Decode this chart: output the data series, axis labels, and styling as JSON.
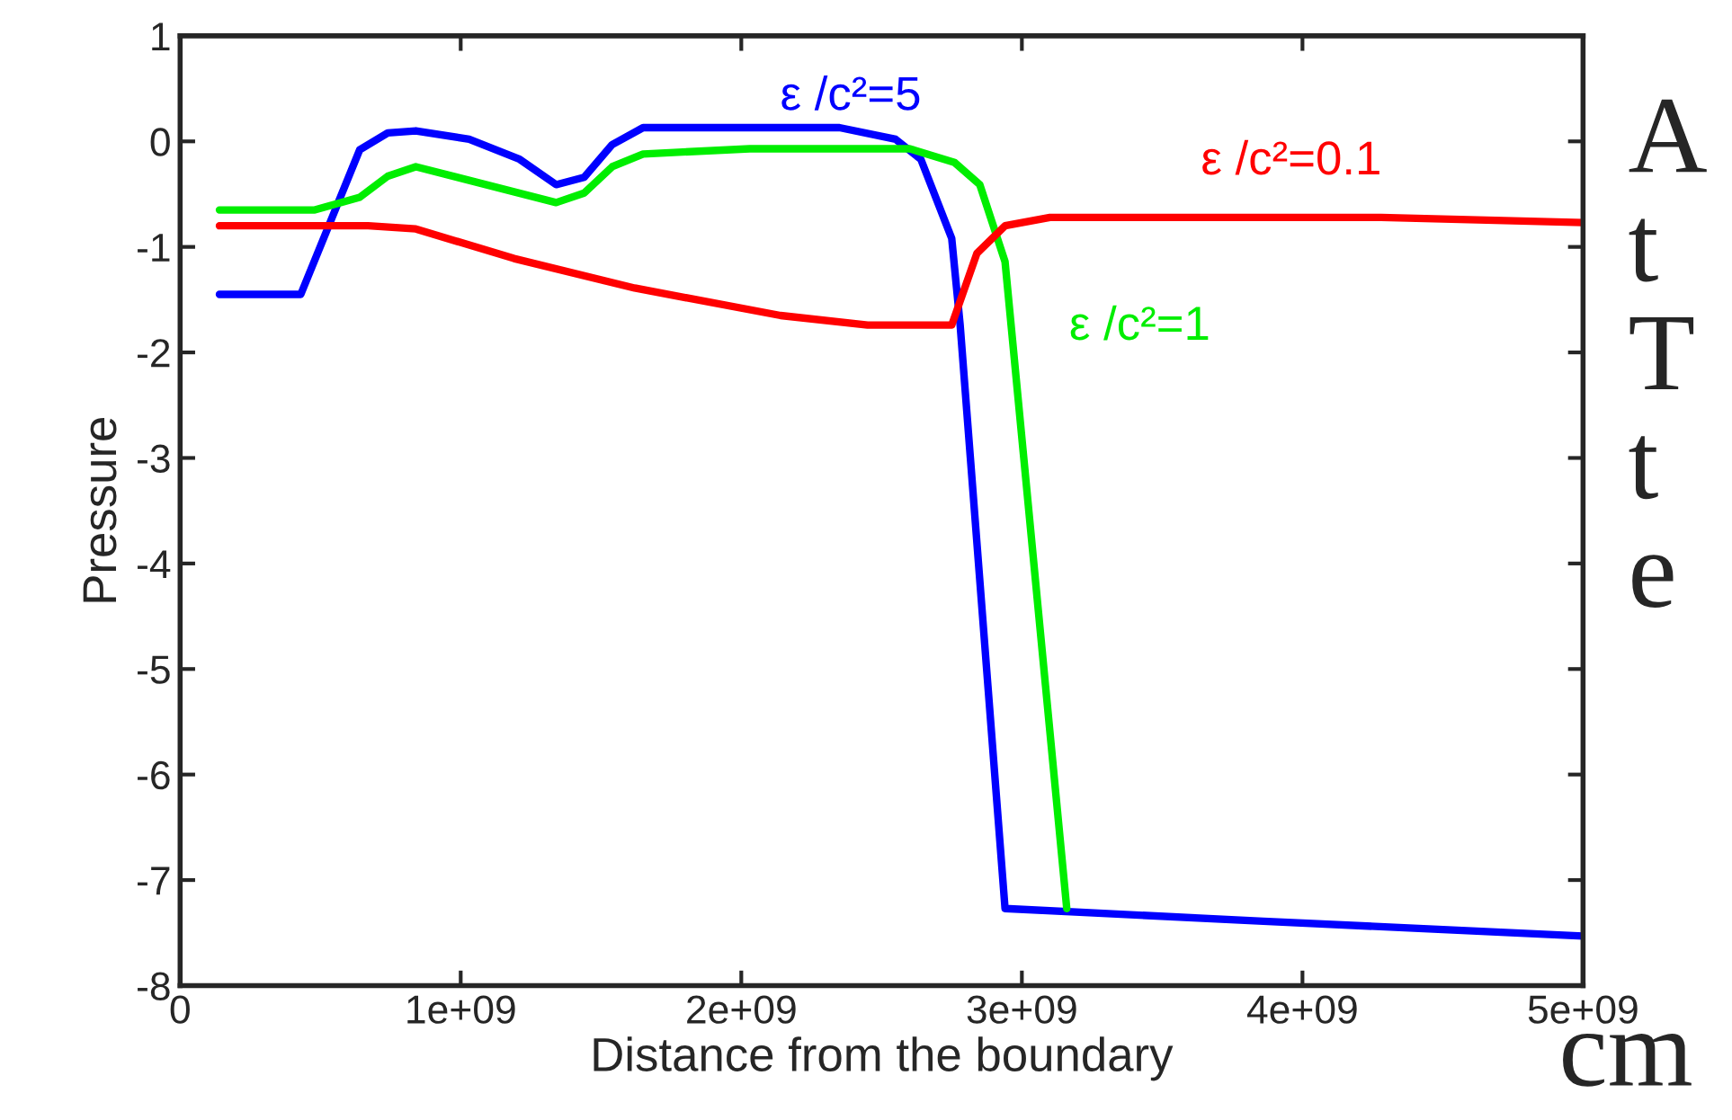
{
  "chart_data": {
    "type": "line",
    "xlabel": "Distance from the boundary",
    "ylabel": "Pressure",
    "xlim": [
      0,
      5000000000
    ],
    "ylim": [
      -8,
      1
    ],
    "xticks": [
      0,
      {
        "value": 1000000000,
        "label": "1e+09"
      },
      {
        "value": 2000000000,
        "label": "2e+09"
      },
      {
        "value": 3000000000,
        "label": "3e+09"
      },
      {
        "value": 4000000000,
        "label": "4e+09"
      },
      {
        "value": 5000000000,
        "label": "5e+09"
      }
    ],
    "yticks": [
      -8,
      -7,
      -6,
      -5,
      -4,
      -3,
      -2,
      -1,
      0,
      1
    ],
    "grid": false,
    "legend": false,
    "line_style": "solid",
    "marker": "none",
    "series": [
      {
        "name": "ε /c²=5",
        "color": "#0000ff",
        "x": [
          140000000,
          430000000,
          640000000,
          740000000,
          840000000,
          1030000000,
          1210000000,
          1340000000,
          1440000000,
          1540000000,
          1650000000,
          2350000000,
          2550000000,
          2640000000,
          2750000000,
          2780000000,
          2940000000,
          3860000000,
          5000000000
        ],
        "values": [
          -1.45,
          -1.45,
          -0.08,
          0.08,
          0.1,
          0.02,
          -0.17,
          -0.41,
          -0.34,
          -0.03,
          0.13,
          0.13,
          0.02,
          -0.17,
          -0.92,
          -1.74,
          -7.27,
          -7.39,
          -7.53
        ]
      },
      {
        "name": "ε /c²=1",
        "color": "#00ee00",
        "x": [
          140000000,
          480000000,
          640000000,
          740000000,
          840000000,
          1340000000,
          1440000000,
          1540000000,
          1650000000,
          2030000000,
          2600000000,
          2760000000,
          2850000000,
          2940000000,
          3160000000
        ],
        "values": [
          -0.65,
          -0.65,
          -0.53,
          -0.33,
          -0.24,
          -0.58,
          -0.49,
          -0.24,
          -0.12,
          -0.07,
          -0.07,
          -0.2,
          -0.41,
          -1.14,
          -7.27
        ]
      },
      {
        "name": "ε /c²=0.1",
        "color": "#ff0000",
        "x": [
          140000000,
          670000000,
          840000000,
          1190000000,
          1620000000,
          2140000000,
          2450000000,
          2750000000,
          2840000000,
          2940000000,
          3100000000,
          4280000000,
          5000000000
        ],
        "values": [
          -0.8,
          -0.8,
          -0.83,
          -1.11,
          -1.39,
          -1.65,
          -1.74,
          -1.74,
          -1.06,
          -0.8,
          -0.72,
          -0.72,
          -0.77
        ]
      }
    ],
    "annotations": [
      "A",
      "t",
      "T",
      "t",
      "e",
      "cm"
    ]
  }
}
